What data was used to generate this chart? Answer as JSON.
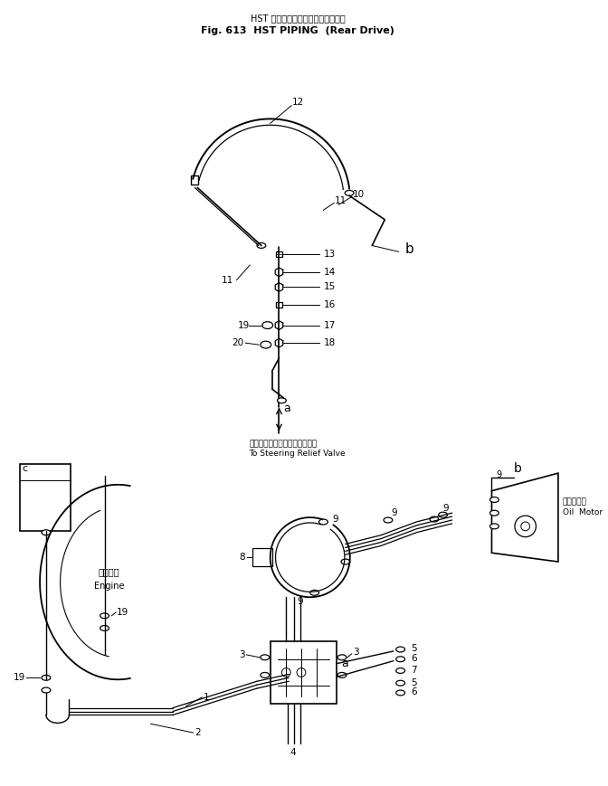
{
  "title_jp": "HST パイピング（リヤードライブ）",
  "title_en": "Fig. 613  HST PIPING  (Rear Drive)",
  "bg_color": "#ffffff",
  "line_color": "#000000",
  "text_color": "#000000",
  "steering_relief_jp": "ステアリングリリーフバルブへ",
  "steering_relief_en": "To Steering Relief Valve",
  "engine_jp": "エンジン",
  "engine_en": "Engine",
  "oil_motor_jp": "油圧モータ",
  "oil_motor_en": "Oil  Motor"
}
